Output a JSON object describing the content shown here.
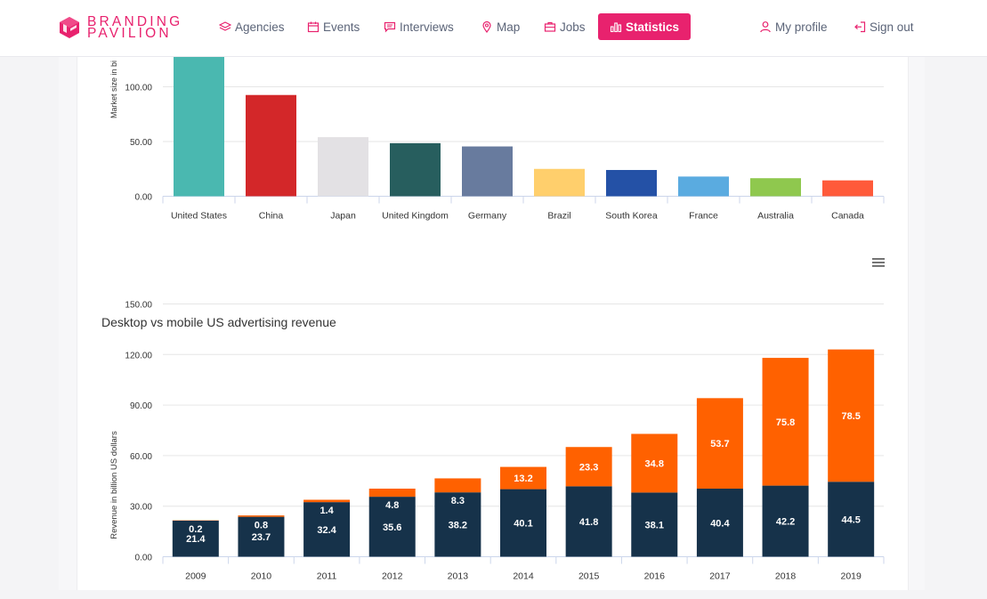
{
  "brand": {
    "line1": "BRANDING",
    "line2": "PAVILION",
    "color": "#e8226e"
  },
  "nav": {
    "items": [
      {
        "label": "Agencies",
        "icon": "layers-icon"
      },
      {
        "label": "Events",
        "icon": "calendar-icon"
      },
      {
        "label": "Interviews",
        "icon": "chat-icon"
      },
      {
        "label": "Map",
        "icon": "map-pin-icon"
      },
      {
        "label": "Jobs",
        "icon": "briefcase-icon"
      },
      {
        "label": "Statistics",
        "icon": "bar-chart-icon",
        "active": true
      }
    ],
    "profile": "My profile",
    "signout": "Sign out"
  },
  "chart_data": [
    {
      "type": "bar",
      "title": "",
      "ylabel": "Market size in bi",
      "xlabel": "",
      "categories": [
        "United States",
        "China",
        "Japan",
        "United Kingdom",
        "Germany",
        "Brazil",
        "South Korea",
        "France",
        "Australia",
        "Canada"
      ],
      "values": [
        128,
        92.5,
        54,
        48.5,
        45.5,
        25,
        24,
        18,
        16.5,
        14.5
      ],
      "colors": [
        "#4ab8b0",
        "#d32729",
        "#e3e1e4",
        "#275e5e",
        "#687b9e",
        "#ffcf6c",
        "#2451a6",
        "#5aabe0",
        "#8fc84e",
        "#ff5a3a"
      ],
      "yticks": [
        "0.00",
        "50.00",
        "100.00"
      ],
      "ylim": [
        0,
        128
      ],
      "grid": true
    },
    {
      "type": "bar",
      "stacked": true,
      "title": "Desktop vs mobile US advertising revenue",
      "ylabel": "Revenue in billion US dollars",
      "xlabel": "",
      "categories": [
        "2009",
        "2010",
        "2011",
        "2012",
        "2013",
        "2014",
        "2015",
        "2016",
        "2017",
        "2018",
        "2019"
      ],
      "series": [
        {
          "values": [
            21.4,
            23.7,
            32.4,
            35.6,
            38.2,
            40.1,
            41.8,
            38.1,
            40.4,
            42.2,
            44.5
          ],
          "color": "#16324a"
        },
        {
          "values": [
            0.2,
            0.8,
            1.4,
            4.8,
            8.3,
            13.2,
            23.3,
            34.8,
            53.7,
            75.8,
            78.5
          ],
          "color": "#ff6100"
        }
      ],
      "yticks": [
        "0.00",
        "30.00",
        "60.00",
        "90.00",
        "120.00",
        "150.00"
      ],
      "ylim": [
        0,
        150
      ],
      "grid": true,
      "legend": "none"
    }
  ]
}
